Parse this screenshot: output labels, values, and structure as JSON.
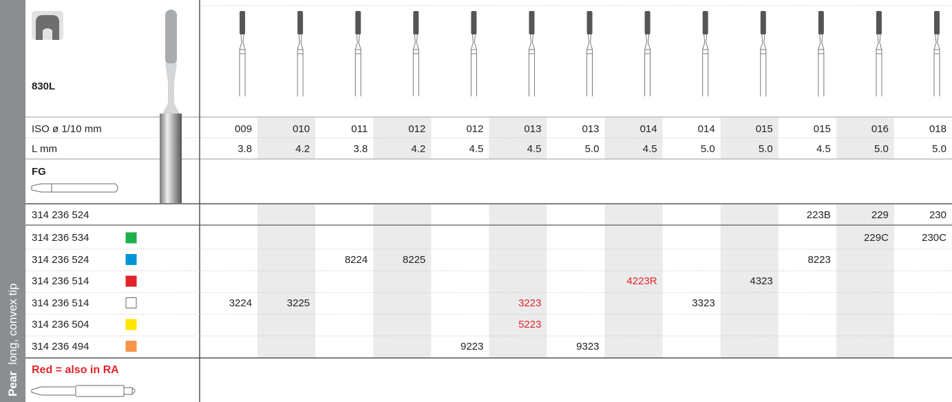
{
  "sidebar": {
    "bold": "Pear",
    "text": "long, convex tip"
  },
  "product": "830L",
  "shank": "FG",
  "specs": [
    {
      "label": "ISO ø 1/10 mm",
      "values": [
        "009",
        "010",
        "011",
        "012",
        "012",
        "013",
        "013",
        "014",
        "014",
        "015",
        "015",
        "016",
        "018"
      ]
    },
    {
      "label": "L mm",
      "values": [
        "3.8",
        "4.2",
        "3.8",
        "4.2",
        "4.5",
        "4.5",
        "5.0",
        "4.5",
        "5.0",
        "5.0",
        "4.5",
        "5.0",
        "5.0"
      ]
    }
  ],
  "rows": [
    {
      "code": "314 236 524",
      "color": null,
      "cells": [
        null,
        null,
        null,
        null,
        null,
        null,
        null,
        null,
        null,
        null,
        "223B",
        "229",
        "230"
      ]
    },
    {
      "code": "314 236 534",
      "color": "#1db04b",
      "cells": [
        null,
        null,
        null,
        null,
        null,
        null,
        null,
        null,
        null,
        null,
        null,
        "229C",
        "230C"
      ]
    },
    {
      "code": "314 236 524",
      "color": "#0096d6",
      "cells": [
        null,
        null,
        "8224",
        "8225",
        null,
        null,
        null,
        null,
        null,
        null,
        "8223",
        null,
        null
      ]
    },
    {
      "code": "314 236 514",
      "color": "#e2232a",
      "cells": [
        null,
        null,
        null,
        null,
        null,
        null,
        null,
        {
          "text": "4223R",
          "color": "#e2232a"
        },
        null,
        "4323",
        null,
        null,
        null
      ]
    },
    {
      "code": "314 236 514",
      "color": "#ffffff",
      "cells": [
        "3224",
        "3225",
        null,
        null,
        null,
        {
          "text": "3223",
          "color": "#e2232a"
        },
        null,
        null,
        "3323",
        null,
        null,
        null,
        null
      ]
    },
    {
      "code": "314 236 504",
      "color": "#ffe600",
      "cells": [
        null,
        null,
        null,
        null,
        null,
        {
          "text": "5223",
          "color": "#e2232a"
        },
        null,
        null,
        null,
        null,
        null,
        null,
        null
      ]
    },
    {
      "code": "314 236 494",
      "color": "#f7944a",
      "cells": [
        null,
        null,
        null,
        null,
        "9223",
        null,
        "9323",
        null,
        null,
        null,
        null,
        null,
        null
      ]
    }
  ],
  "note": {
    "text": "Red = also in RA",
    "color": "#e2232a"
  }
}
